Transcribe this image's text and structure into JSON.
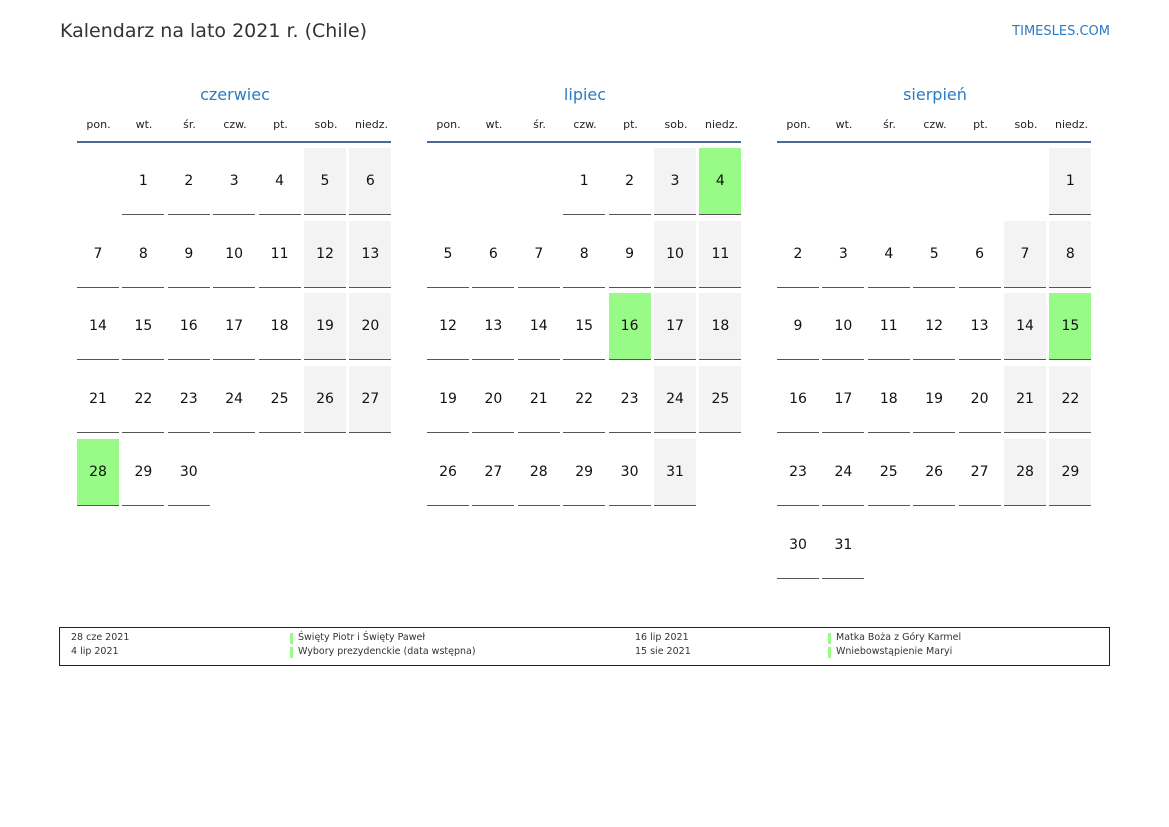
{
  "title": "Kalendarz na lato 2021 r. (Chile)",
  "site": "TIMESLES.COM",
  "weekdays": [
    "pon.",
    "wt.",
    "śr.",
    "czw.",
    "pt.",
    "sob.",
    "niedz."
  ],
  "colors": {
    "accent": "#2b7bc4",
    "holiday": "#98fb88",
    "weekend": "#f3f3f3",
    "rule": "#4a6a94"
  },
  "months": [
    {
      "name": "czerwiec",
      "offset": 1,
      "days": 30,
      "holidays": [
        28
      ]
    },
    {
      "name": "lipiec",
      "offset": 3,
      "days": 31,
      "holidays": [
        4,
        16
      ]
    },
    {
      "name": "sierpień",
      "offset": 6,
      "days": 31,
      "holidays": [
        15
      ]
    }
  ],
  "legend": [
    {
      "date": "28 cze 2021",
      "name": "Święty Piotr i Święty Paweł"
    },
    {
      "date": "4 lip 2021",
      "name": "Wybory prezydenckie (data wstępna)"
    },
    {
      "date": "16 lip 2021",
      "name": "Matka Boża z Góry Karmel"
    },
    {
      "date": "15 sie 2021",
      "name": "Wniebowstąpienie Maryi"
    }
  ]
}
